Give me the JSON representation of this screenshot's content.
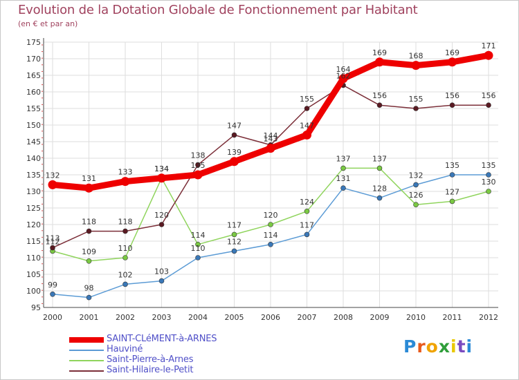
{
  "title": "Evolution de la Dotation Globale de Fonctionnement par Habitant",
  "subtitle": "(en € et par an)",
  "logo": {
    "letters": [
      "P",
      "r",
      "o",
      "x",
      "i",
      "t",
      "i"
    ],
    "colors": [
      "#2b8ad6",
      "#e85a1c",
      "#f0a300",
      "#2f9e3a",
      "#e8c800",
      "#7a4bc0",
      "#2b8ad6"
    ]
  },
  "chart_data": {
    "type": "line",
    "title": "Evolution de la Dotation Globale de Fonctionnement par Habitant",
    "ylabel": "(en € et par an)",
    "xlabel": "",
    "ylim": [
      95,
      175
    ],
    "yticks": [
      95,
      100,
      105,
      110,
      115,
      120,
      125,
      130,
      135,
      140,
      145,
      150,
      155,
      160,
      165,
      170,
      175
    ],
    "categories": [
      "2000",
      "2001",
      "2002",
      "2003",
      "2004",
      "2005",
      "2006",
      "2007",
      "2008",
      "2009",
      "2010",
      "2011",
      "2012"
    ],
    "grid": true,
    "legend_position": "bottom-left",
    "series": [
      {
        "name": "SAINT-CLéMENT-à-ARNES",
        "values": [
          132,
          131,
          133,
          134,
          135,
          139,
          143,
          147,
          164,
          169,
          168,
          169,
          171
        ],
        "color": "#ee0000",
        "highlight": true
      },
      {
        "name": "Hauviné",
        "values": [
          99,
          98,
          102,
          103,
          110,
          112,
          114,
          117,
          131,
          128,
          132,
          135,
          135
        ],
        "color": "#5b9bd5",
        "marker": "#3a78b8"
      },
      {
        "name": "Saint-Pierre-à-Arnes",
        "values": [
          112,
          109,
          110,
          134,
          114,
          117,
          120,
          124,
          137,
          137,
          126,
          127,
          130
        ],
        "color": "#8fd45c",
        "marker": "#7ac943"
      },
      {
        "name": "Saint-Hilaire-le-Petit",
        "values": [
          113,
          118,
          118,
          120,
          138,
          147,
          144,
          155,
          162,
          156,
          155,
          156,
          156
        ],
        "color": "#7b2e38",
        "marker": "#5a1a22"
      }
    ]
  }
}
